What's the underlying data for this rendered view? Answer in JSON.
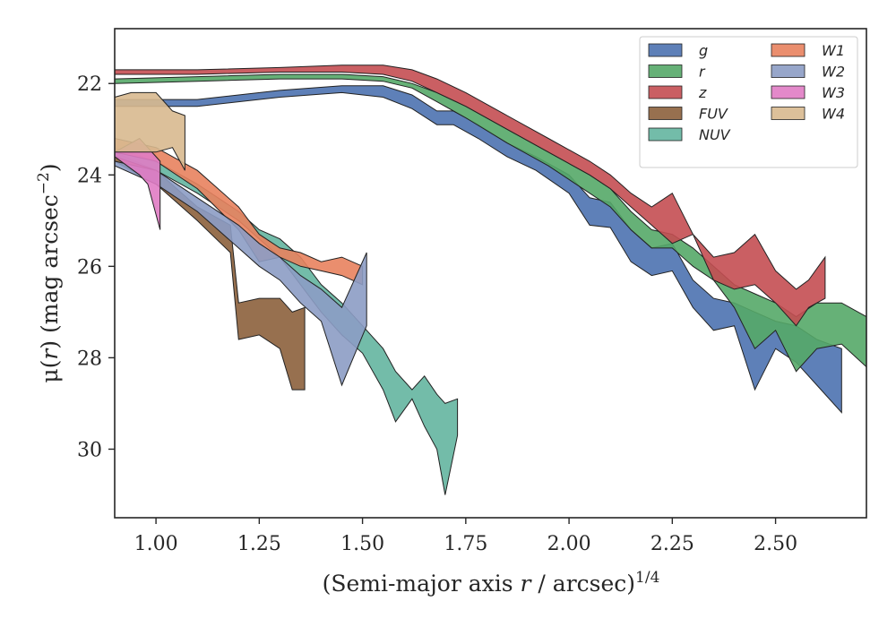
{
  "chart_data": {
    "type": "area",
    "xlabel_prefix": "(Semi-major axis ",
    "xlabel_var": "r",
    "xlabel_mid": " / arcsec)",
    "xlabel_sup": "1/4",
    "ylabel_pre": "μ(",
    "ylabel_var": "r",
    "ylabel_post": ") (mag arcsec",
    "ylabel_sup": "−2",
    "ylabel_end": ")",
    "xlim": [
      0.9,
      2.72
    ],
    "ylim": [
      31.5,
      20.8
    ],
    "y_inverted": true,
    "xticks": [
      1.0,
      1.25,
      1.5,
      1.75,
      2.0,
      2.25,
      2.5
    ],
    "xtick_labels": [
      "1.00",
      "1.25",
      "1.50",
      "1.75",
      "2.00",
      "2.25",
      "2.50"
    ],
    "yticks": [
      22,
      24,
      26,
      28,
      30
    ],
    "ytick_labels": [
      "22",
      "24",
      "26",
      "28",
      "30"
    ],
    "grid": false,
    "legend_position": "top-right",
    "legend_columns": 2,
    "series": [
      {
        "name": "g",
        "color": "#4c72b0",
        "x": [
          0.9,
          1.1,
          1.3,
          1.45,
          1.55,
          1.62,
          1.68,
          1.72,
          1.78,
          1.85,
          1.92,
          2.0,
          2.05,
          2.1,
          2.15,
          2.2,
          2.25,
          2.3,
          2.35,
          2.4,
          2.45,
          2.5,
          2.55,
          2.6,
          2.66
        ],
        "y1": [
          22.35,
          22.35,
          22.15,
          22.05,
          22.05,
          22.25,
          22.6,
          22.6,
          22.9,
          23.3,
          23.6,
          24.0,
          24.5,
          24.6,
          25.2,
          25.6,
          25.5,
          26.3,
          26.7,
          26.8,
          27.0,
          27.2,
          27.3,
          27.6,
          27.8
        ],
        "y2": [
          22.5,
          22.5,
          22.3,
          22.2,
          22.3,
          22.55,
          22.9,
          22.9,
          23.2,
          23.6,
          23.9,
          24.4,
          25.1,
          25.15,
          25.9,
          26.2,
          26.1,
          26.9,
          27.4,
          27.3,
          28.7,
          27.8,
          28.1,
          28.6,
          29.2
        ]
      },
      {
        "name": "r",
        "color": "#55a868",
        "x": [
          0.9,
          1.1,
          1.3,
          1.45,
          1.55,
          1.62,
          1.68,
          1.75,
          1.85,
          1.95,
          2.05,
          2.1,
          2.15,
          2.2,
          2.25,
          2.3,
          2.35,
          2.4,
          2.45,
          2.5,
          2.55,
          2.6,
          2.66,
          2.72
        ],
        "y1": [
          21.9,
          21.85,
          21.8,
          21.8,
          21.85,
          22.0,
          22.2,
          22.5,
          23.0,
          23.5,
          24.0,
          24.3,
          24.8,
          25.2,
          25.3,
          25.6,
          26.0,
          26.4,
          26.6,
          26.8,
          27.1,
          26.8,
          26.8,
          27.1
        ],
        "y2": [
          22.0,
          21.95,
          21.9,
          21.9,
          21.95,
          22.1,
          22.4,
          22.75,
          23.3,
          23.8,
          24.4,
          24.7,
          25.2,
          25.6,
          25.6,
          26.0,
          26.3,
          26.9,
          27.8,
          27.4,
          28.3,
          27.8,
          27.7,
          28.2
        ]
      },
      {
        "name": "z",
        "color": "#c44e52",
        "x": [
          0.9,
          1.1,
          1.3,
          1.45,
          1.55,
          1.62,
          1.68,
          1.75,
          1.85,
          1.95,
          2.05,
          2.1,
          2.15,
          2.2,
          2.25,
          2.3,
          2.35,
          2.4,
          2.45,
          2.5,
          2.55,
          2.58,
          2.62
        ],
        "y1": [
          21.7,
          21.7,
          21.65,
          21.6,
          21.6,
          21.7,
          21.9,
          22.2,
          22.7,
          23.2,
          23.7,
          24.0,
          24.4,
          24.7,
          24.4,
          25.3,
          25.8,
          25.7,
          25.3,
          26.1,
          26.5,
          26.3,
          25.8
        ],
        "y2": [
          21.8,
          21.8,
          21.75,
          21.75,
          21.8,
          21.95,
          22.2,
          22.5,
          23.0,
          23.5,
          24.0,
          24.3,
          24.7,
          25.1,
          25.5,
          25.3,
          26.3,
          26.5,
          26.4,
          26.8,
          27.3,
          26.9,
          26.7
        ]
      },
      {
        "name": "FUV",
        "color": "#8c613c",
        "x": [
          0.9,
          1.0,
          1.1,
          1.18,
          1.2,
          1.25,
          1.3,
          1.33,
          1.36
        ],
        "y1": [
          23.5,
          23.9,
          24.7,
          25.1,
          26.8,
          26.7,
          26.7,
          27.0,
          26.9
        ],
        "y2": [
          23.7,
          24.2,
          25.0,
          25.7,
          27.6,
          27.5,
          27.8,
          28.7,
          28.7
        ]
      },
      {
        "name": "NUV",
        "color": "#64b5a0",
        "x": [
          0.9,
          1.0,
          1.1,
          1.2,
          1.25,
          1.3,
          1.35,
          1.4,
          1.45,
          1.5,
          1.55,
          1.58,
          1.62,
          1.65,
          1.68,
          1.7,
          1.73
        ],
        "y1": [
          23.4,
          23.7,
          24.2,
          24.8,
          25.2,
          25.4,
          25.8,
          26.4,
          26.8,
          27.3,
          27.8,
          28.3,
          28.7,
          28.4,
          28.8,
          29.0,
          28.9
        ],
        "y2": [
          23.6,
          23.9,
          24.4,
          25.0,
          25.4,
          25.8,
          26.4,
          27.0,
          27.5,
          27.9,
          28.7,
          29.4,
          28.9,
          29.5,
          30.0,
          31.0,
          29.7
        ]
      },
      {
        "name": "W1",
        "color": "#e8825e",
        "x": [
          0.9,
          1.0,
          1.1,
          1.2,
          1.25,
          1.3,
          1.35,
          1.4,
          1.45,
          1.5
        ],
        "y1": [
          23.2,
          23.4,
          23.9,
          24.7,
          25.3,
          25.6,
          25.7,
          25.9,
          25.8,
          26.0
        ],
        "y2": [
          23.5,
          23.7,
          24.3,
          25.2,
          25.9,
          25.8,
          26.0,
          26.1,
          26.2,
          26.4
        ]
      },
      {
        "name": "W2",
        "color": "#8c9cc4",
        "x": [
          0.9,
          1.0,
          1.1,
          1.2,
          1.25,
          1.3,
          1.35,
          1.4,
          1.45,
          1.51
        ],
        "y1": [
          23.7,
          23.9,
          24.5,
          25.1,
          25.5,
          25.8,
          26.2,
          26.5,
          26.9,
          25.7
        ],
        "y2": [
          23.8,
          24.2,
          24.8,
          25.6,
          26.0,
          26.3,
          26.8,
          27.2,
          28.6,
          27.3
        ]
      },
      {
        "name": "W3",
        "color": "#e07cc4",
        "x": [
          0.9,
          0.96,
          0.98,
          1.01
        ],
        "y1": [
          23.5,
          23.2,
          23.4,
          23.7
        ],
        "y2": [
          23.6,
          24.0,
          24.2,
          25.2
        ]
      },
      {
        "name": "W4",
        "color": "#d8b98f",
        "x": [
          0.9,
          0.94,
          1.0,
          1.04,
          1.07
        ],
        "y1": [
          22.3,
          22.2,
          22.2,
          22.6,
          22.7
        ],
        "y2": [
          23.5,
          23.5,
          23.5,
          23.4,
          23.9
        ]
      }
    ]
  }
}
